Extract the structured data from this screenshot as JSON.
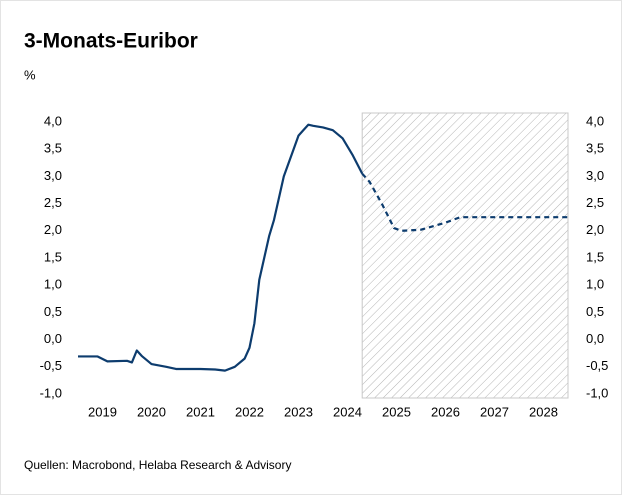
{
  "chart_data": {
    "type": "line",
    "title": "3-Monats-Euribor",
    "y_label": "%",
    "source": "Quellen: Macrobond, Helaba Research & Advisory",
    "xlim": [
      2019,
      2029
    ],
    "xticks": [
      {
        "value": 2019.5,
        "label": "2019"
      },
      {
        "value": 2020.5,
        "label": "2020"
      },
      {
        "value": 2021.5,
        "label": "2021"
      },
      {
        "value": 2022.5,
        "label": "2022"
      },
      {
        "value": 2023.5,
        "label": "2023"
      },
      {
        "value": 2024.5,
        "label": "2024"
      },
      {
        "value": 2025.5,
        "label": "2025"
      },
      {
        "value": 2026.5,
        "label": "2026"
      },
      {
        "value": 2027.5,
        "label": "2027"
      },
      {
        "value": 2028.5,
        "label": "2028"
      }
    ],
    "ylim": [
      -1,
      4
    ],
    "yticks": [
      {
        "value": 4,
        "label": "4,0"
      },
      {
        "value": 3.5,
        "label": "3,5"
      },
      {
        "value": 3,
        "label": "3,0"
      },
      {
        "value": 2.5,
        "label": "2,5"
      },
      {
        "value": 2,
        "label": "2,0"
      },
      {
        "value": 1.5,
        "label": "1,5"
      },
      {
        "value": 1,
        "label": "1,0"
      },
      {
        "value": 0.5,
        "label": "0,5"
      },
      {
        "value": 0,
        "label": "0,0"
      },
      {
        "value": -0.5,
        "label": "-0,5"
      },
      {
        "value": -1,
        "label": "-1,0"
      }
    ],
    "y2lim": [
      -1,
      4
    ],
    "y2ticks": [
      {
        "value": 4,
        "label": "4,0"
      },
      {
        "value": 3.5,
        "label": "3,5"
      },
      {
        "value": 3,
        "label": "3,0"
      },
      {
        "value": 2.5,
        "label": "2,5"
      },
      {
        "value": 2,
        "label": "2,0"
      },
      {
        "value": 1.5,
        "label": "1,5"
      },
      {
        "value": 1,
        "label": "1,0"
      },
      {
        "value": 0.5,
        "label": "0,5"
      },
      {
        "value": 0,
        "label": "0,0"
      },
      {
        "value": -0.5,
        "label": "-0,5"
      },
      {
        "value": -1,
        "label": "-1,0"
      }
    ],
    "series": [
      {
        "color": "#0d3c6e",
        "style": "solid",
        "x": [
          2019.0,
          2019.4,
          2019.6,
          2020.0,
          2020.1,
          2020.2,
          2020.3,
          2020.5,
          2020.8,
          2021.0,
          2021.5,
          2021.8,
          2022.0,
          2022.2,
          2022.4,
          2022.5,
          2022.6,
          2022.7,
          2022.8,
          2022.9,
          2023.0,
          2023.1,
          2023.2,
          2023.4,
          2023.5,
          2023.6,
          2023.7,
          2023.8,
          2024.0,
          2024.2,
          2024.4,
          2024.6,
          2024.8
        ],
        "values": [
          -0.31,
          -0.31,
          -0.4,
          -0.39,
          -0.42,
          -0.2,
          -0.3,
          -0.45,
          -0.5,
          -0.54,
          -0.54,
          -0.55,
          -0.57,
          -0.5,
          -0.35,
          -0.15,
          0.3,
          1.1,
          1.5,
          1.9,
          2.2,
          2.6,
          3.0,
          3.5,
          3.75,
          3.85,
          3.95,
          3.93,
          3.9,
          3.85,
          3.7,
          3.4,
          3.05
        ]
      },
      {
        "color": "#0d3c6e",
        "style": "dashed",
        "x": [
          2024.8,
          2024.95,
          2025.2,
          2025.45,
          2025.6,
          2026.0,
          2026.5,
          2026.8,
          2029.0
        ],
        "values": [
          3.05,
          2.9,
          2.5,
          2.05,
          2.0,
          2.02,
          2.15,
          2.25,
          2.25
        ]
      }
    ]
  }
}
